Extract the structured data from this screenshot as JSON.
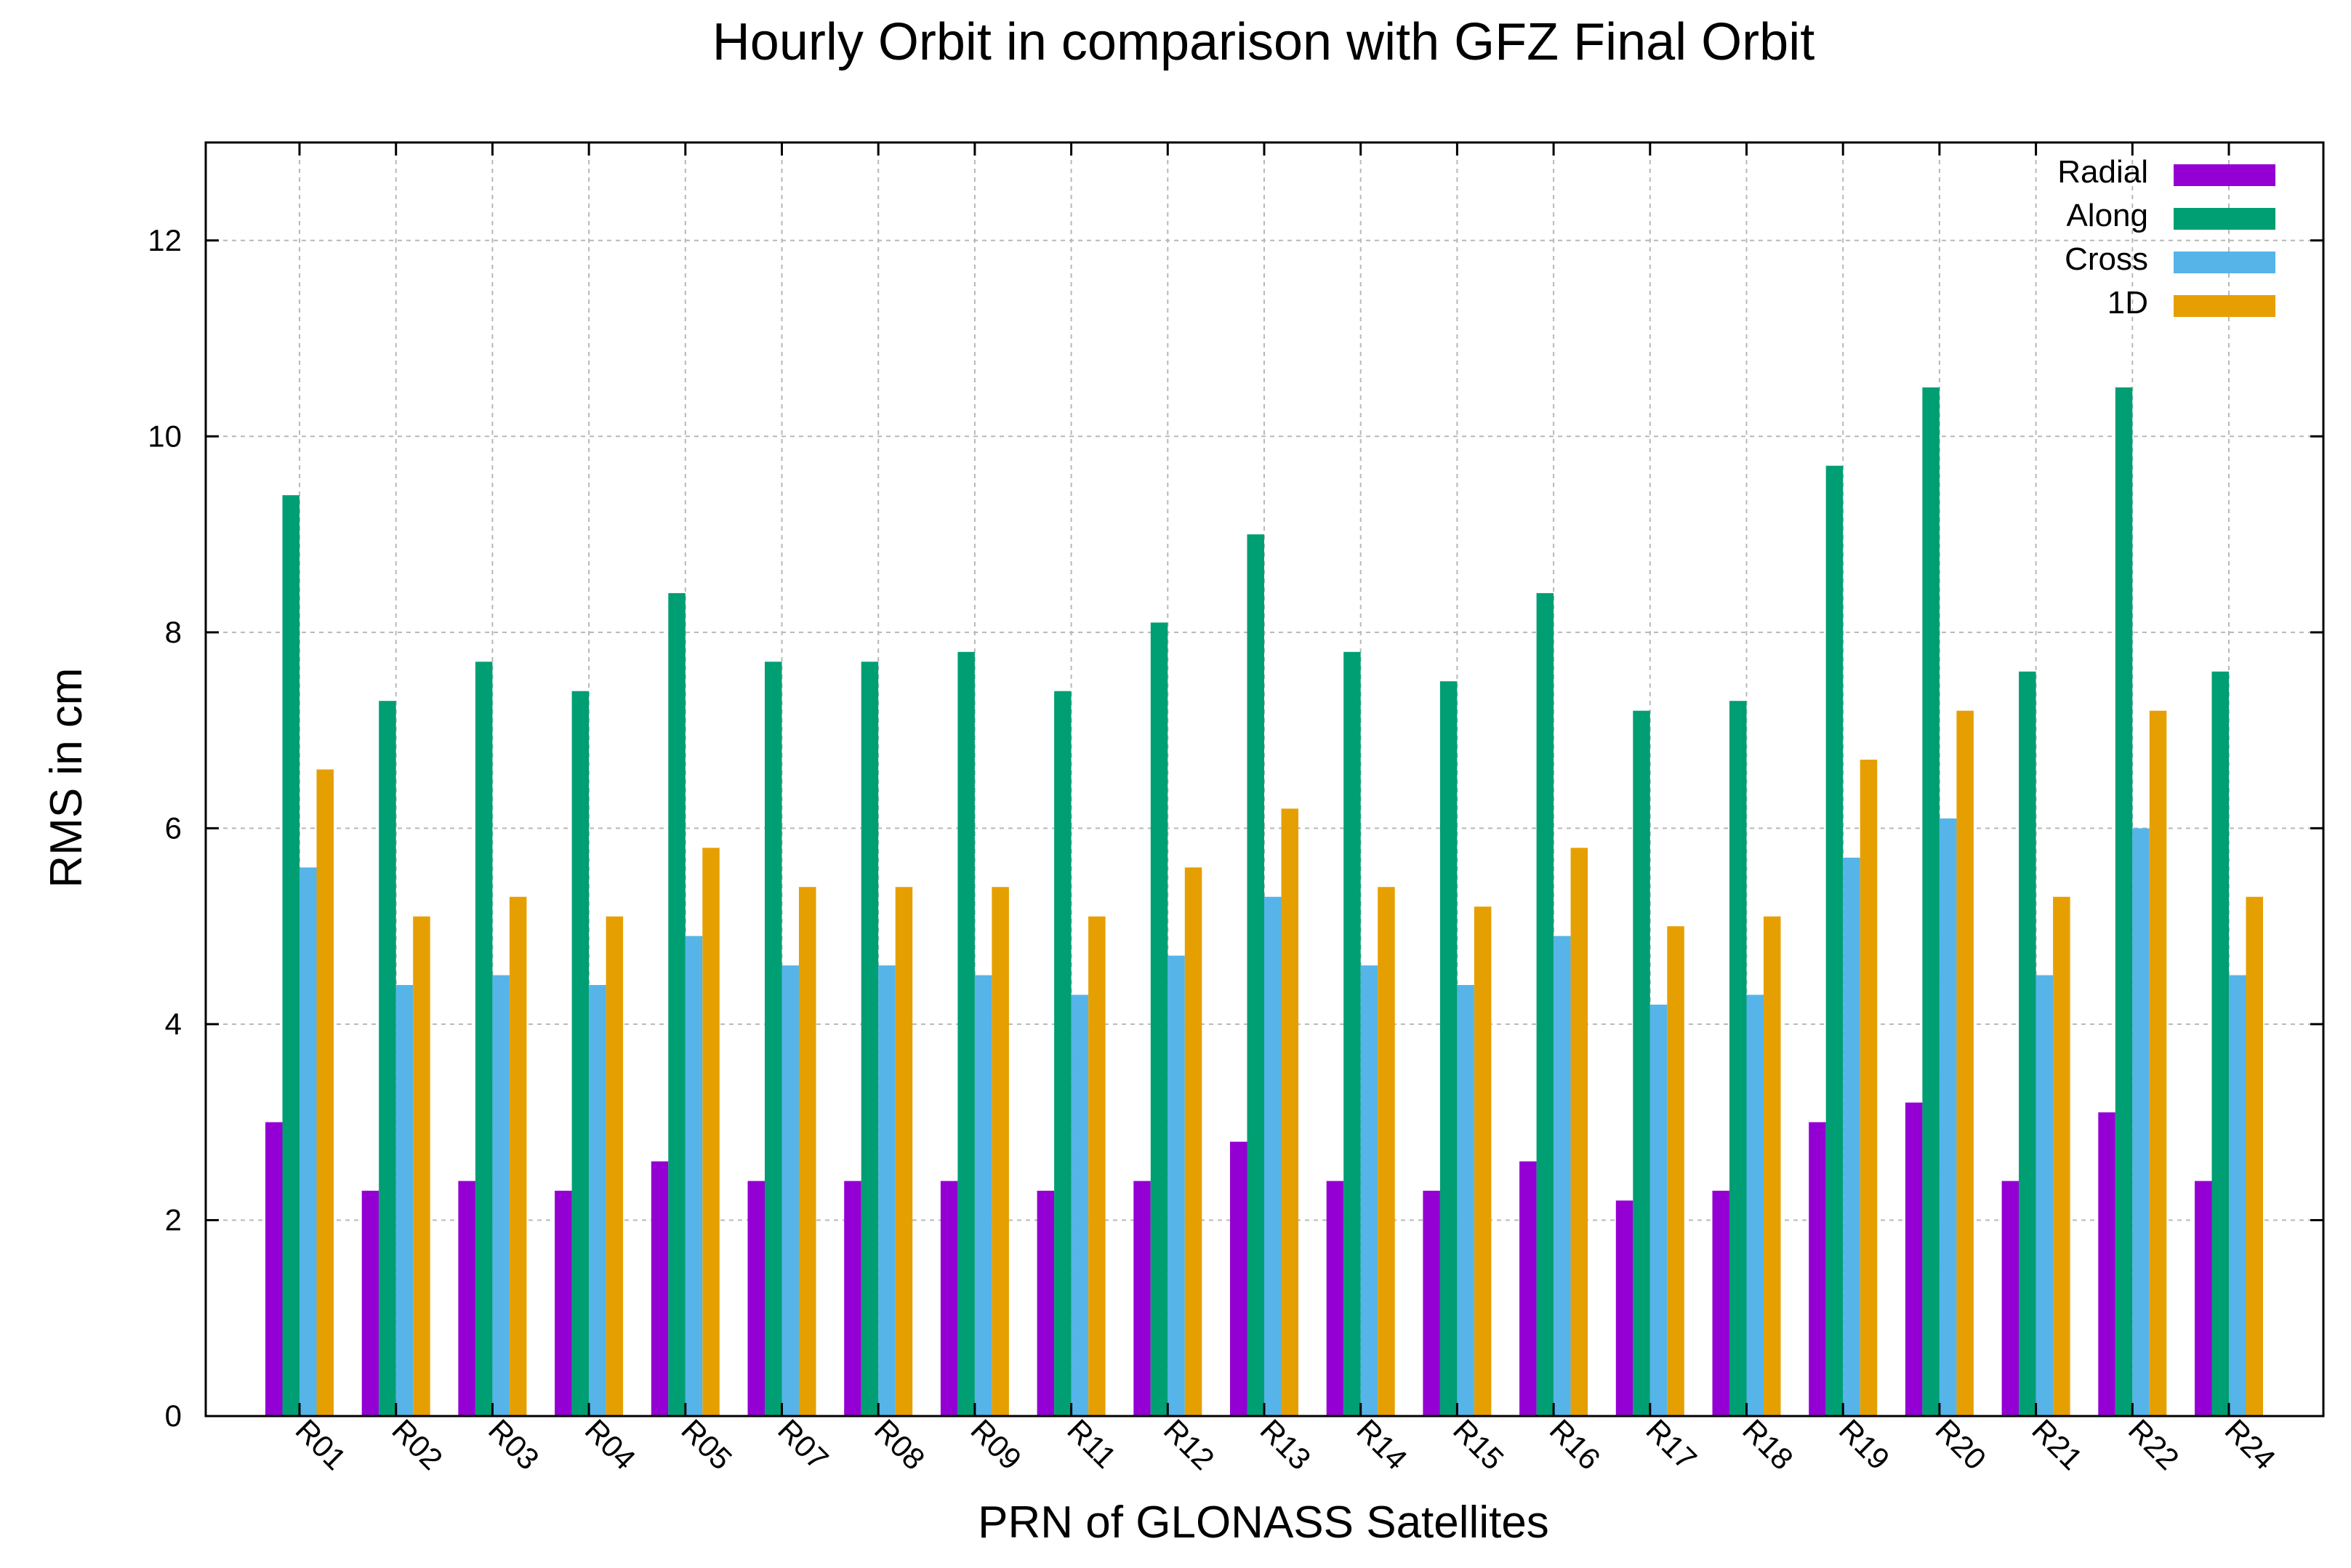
{
  "chart_data": {
    "type": "bar",
    "title": "Hourly Orbit in comparison with GFZ Final Orbit",
    "xlabel": "PRN of GLONASS Satellites",
    "ylabel": "RMS in cm",
    "ylim": [
      0,
      13
    ],
    "yticks": [
      0,
      2,
      4,
      6,
      8,
      10,
      12
    ],
    "grid": true,
    "legend_position": "top-right",
    "categories": [
      "R01",
      "R02",
      "R03",
      "R04",
      "R05",
      "R07",
      "R08",
      "R09",
      "R11",
      "R12",
      "R13",
      "R14",
      "R15",
      "R16",
      "R17",
      "R18",
      "R19",
      "R20",
      "R21",
      "R22",
      "R24"
    ],
    "series": [
      {
        "name": "Radial",
        "color": "#9400d3",
        "values": [
          3.0,
          2.3,
          2.4,
          2.3,
          2.6,
          2.4,
          2.4,
          2.4,
          2.3,
          2.4,
          2.8,
          2.4,
          2.3,
          2.6,
          2.2,
          2.3,
          3.0,
          3.2,
          2.4,
          3.1,
          2.4
        ]
      },
      {
        "name": "Along",
        "color": "#009e73",
        "values": [
          9.4,
          7.3,
          7.7,
          7.4,
          8.4,
          7.7,
          7.7,
          7.8,
          7.4,
          8.1,
          9.0,
          7.8,
          7.5,
          8.4,
          7.2,
          7.3,
          9.7,
          10.5,
          7.6,
          10.5,
          7.6
        ]
      },
      {
        "name": "Cross",
        "color": "#56b4e9",
        "values": [
          5.6,
          4.4,
          4.5,
          4.4,
          4.9,
          4.6,
          4.6,
          4.5,
          4.3,
          4.7,
          5.3,
          4.6,
          4.4,
          4.9,
          4.2,
          4.3,
          5.7,
          6.1,
          4.5,
          6.0,
          4.5
        ]
      },
      {
        "name": "1D",
        "color": "#e69f00",
        "values": [
          6.6,
          5.1,
          5.3,
          5.1,
          5.8,
          5.4,
          5.4,
          5.4,
          5.1,
          5.6,
          6.2,
          5.4,
          5.2,
          5.8,
          5.0,
          5.1,
          6.7,
          7.2,
          5.3,
          7.2,
          5.3
        ]
      }
    ]
  }
}
